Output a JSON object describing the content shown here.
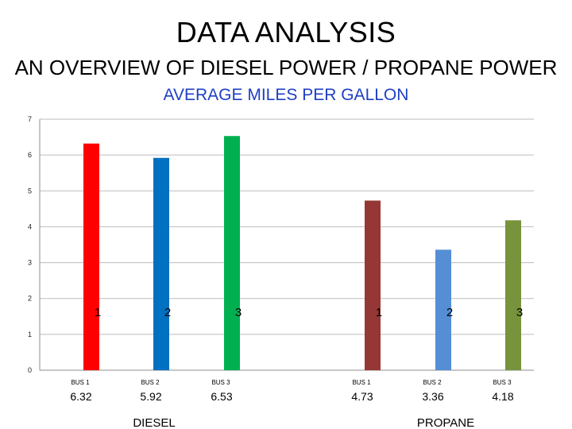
{
  "page": {
    "title": "DATA ANALYSIS",
    "subtitle": "AN OVERVIEW OF DIESEL POWER / PROPANE POWER"
  },
  "chart_data": {
    "type": "bar",
    "title": "AVERAGE MILES PER GALLON",
    "ylim": [
      0,
      7
    ],
    "yticks": [
      "0",
      "1",
      "2",
      "3",
      "4",
      "5",
      "6",
      "7"
    ],
    "grid": true,
    "groups": [
      "DIESEL",
      "PROPANE"
    ],
    "bars": [
      {
        "group": "DIESEL",
        "category": "BUS 1",
        "index": "1",
        "value": 6.32,
        "label": "6.32",
        "color": "#ff0000"
      },
      {
        "group": "DIESEL",
        "category": "BUS 2",
        "index": "2",
        "value": 5.92,
        "label": "5.92",
        "color": "#0070c0"
      },
      {
        "group": "DIESEL",
        "category": "BUS 3",
        "index": "3",
        "value": 6.53,
        "label": "6.53",
        "color": "#00b050"
      },
      {
        "group": "PROPANE",
        "category": "BUS 1",
        "index": "1",
        "value": 4.73,
        "label": "4.73",
        "color": "#953735"
      },
      {
        "group": "PROPANE",
        "category": "BUS 2",
        "index": "2",
        "value": 3.36,
        "label": "3.36",
        "color": "#558ed5"
      },
      {
        "group": "PROPANE",
        "category": "BUS 3",
        "index": "3",
        "value": 4.18,
        "label": "4.18",
        "color": "#77933c"
      }
    ]
  }
}
